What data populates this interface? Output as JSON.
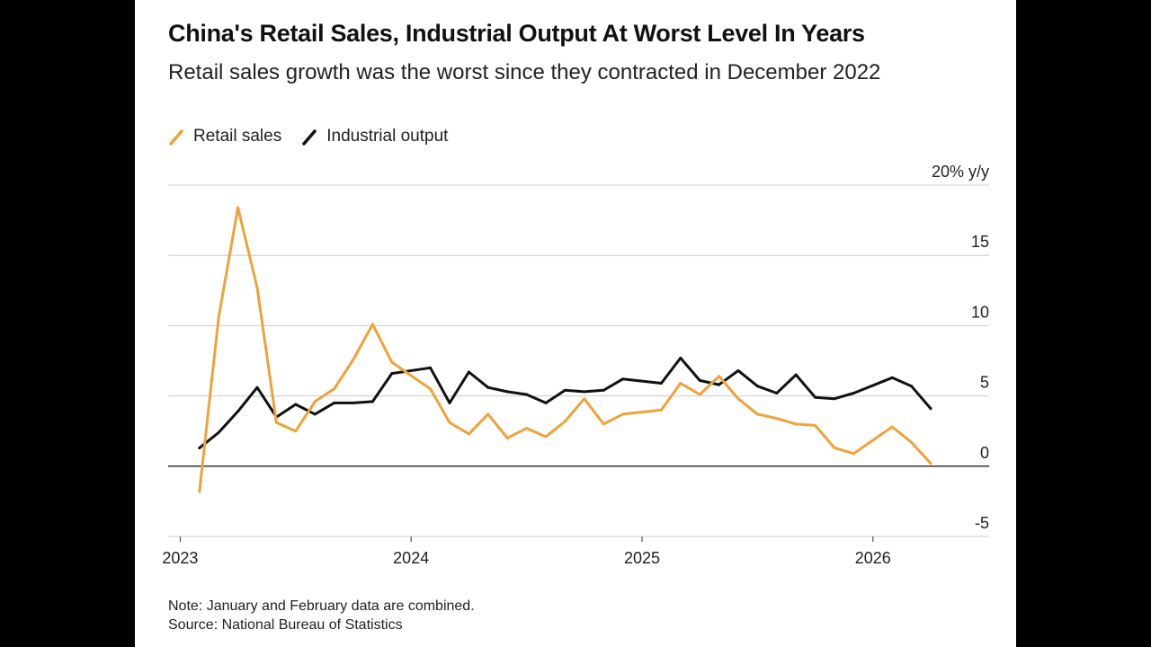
{
  "title": "China's Retail Sales, Industrial Output At Worst Level In Years",
  "subtitle": "Retail sales growth was the worst since they contracted in December 2022",
  "note": "Note: January and February data are combined.",
  "source": "Source: National Bureau of Statistics",
  "colors": {
    "retail": "#f0a23a",
    "industrial": "#111111",
    "grid": "#cccccc",
    "zero": "#333333"
  },
  "chart_data": {
    "type": "line",
    "ylabel_unit": "20% y/y",
    "ylim": [
      -5,
      20
    ],
    "yticks": [
      {
        "value": 20,
        "label": "20% y/y"
      },
      {
        "value": 15,
        "label": "15"
      },
      {
        "value": 10,
        "label": "10"
      },
      {
        "value": 5,
        "label": "5"
      },
      {
        "value": 0,
        "label": "0"
      },
      {
        "value": -5,
        "label": "-5"
      }
    ],
    "xticks": [
      {
        "value": "2023-01",
        "label": "2023"
      },
      {
        "value": "2024-01",
        "label": "2024"
      },
      {
        "value": "2025-01",
        "label": "2025"
      },
      {
        "value": "2026-01",
        "label": "2026"
      }
    ],
    "xlim": [
      "2022-12",
      "2026-05"
    ],
    "grid": true,
    "legend_position": "top-left",
    "series": [
      {
        "name": "Retail sales",
        "key": "retail",
        "points": [
          [
            "2023-02",
            -1.8
          ],
          [
            "2023-03",
            10.6
          ],
          [
            "2023-04",
            18.4
          ],
          [
            "2023-05",
            12.7
          ],
          [
            "2023-06",
            3.1
          ],
          [
            "2023-07",
            2.5
          ],
          [
            "2023-08",
            4.6
          ],
          [
            "2023-09",
            5.5
          ],
          [
            "2023-10",
            7.6
          ],
          [
            "2023-11",
            10.1
          ],
          [
            "2023-12",
            7.4
          ],
          [
            "2024-02",
            5.5
          ],
          [
            "2024-03",
            3.1
          ],
          [
            "2024-04",
            2.3
          ],
          [
            "2024-05",
            3.7
          ],
          [
            "2024-06",
            2.0
          ],
          [
            "2024-07",
            2.7
          ],
          [
            "2024-08",
            2.1
          ],
          [
            "2024-09",
            3.2
          ],
          [
            "2024-10",
            4.8
          ],
          [
            "2024-11",
            3.0
          ],
          [
            "2024-12",
            3.7
          ],
          [
            "2025-02",
            4.0
          ],
          [
            "2025-03",
            5.9
          ],
          [
            "2025-04",
            5.1
          ],
          [
            "2025-05",
            6.4
          ],
          [
            "2025-06",
            4.8
          ],
          [
            "2025-07",
            3.7
          ],
          [
            "2025-08",
            3.4
          ],
          [
            "2025-09",
            3.0
          ],
          [
            "2025-10",
            2.9
          ],
          [
            "2025-11",
            1.3
          ],
          [
            "2025-12",
            0.9
          ],
          [
            "2026-02",
            2.8
          ],
          [
            "2026-03",
            1.7
          ],
          [
            "2026-04",
            0.2
          ]
        ]
      },
      {
        "name": "Industrial output",
        "key": "industrial",
        "points": [
          [
            "2023-02",
            1.3
          ],
          [
            "2023-03",
            2.4
          ],
          [
            "2023-04",
            3.9
          ],
          [
            "2023-05",
            5.6
          ],
          [
            "2023-06",
            3.5
          ],
          [
            "2023-07",
            4.4
          ],
          [
            "2023-08",
            3.7
          ],
          [
            "2023-09",
            4.5
          ],
          [
            "2023-10",
            4.5
          ],
          [
            "2023-11",
            4.6
          ],
          [
            "2023-12",
            6.6
          ],
          [
            "2024-02",
            7.0
          ],
          [
            "2024-03",
            4.5
          ],
          [
            "2024-04",
            6.7
          ],
          [
            "2024-05",
            5.6
          ],
          [
            "2024-06",
            5.3
          ],
          [
            "2024-07",
            5.1
          ],
          [
            "2024-08",
            4.5
          ],
          [
            "2024-09",
            5.4
          ],
          [
            "2024-10",
            5.3
          ],
          [
            "2024-11",
            5.4
          ],
          [
            "2024-12",
            6.2
          ],
          [
            "2025-02",
            5.9
          ],
          [
            "2025-03",
            7.7
          ],
          [
            "2025-04",
            6.1
          ],
          [
            "2025-05",
            5.8
          ],
          [
            "2025-06",
            6.8
          ],
          [
            "2025-07",
            5.7
          ],
          [
            "2025-08",
            5.2
          ],
          [
            "2025-09",
            6.5
          ],
          [
            "2025-10",
            4.9
          ],
          [
            "2025-11",
            4.8
          ],
          [
            "2025-12",
            5.2
          ],
          [
            "2026-02",
            6.3
          ],
          [
            "2026-03",
            5.7
          ],
          [
            "2026-04",
            4.1
          ]
        ]
      }
    ]
  }
}
